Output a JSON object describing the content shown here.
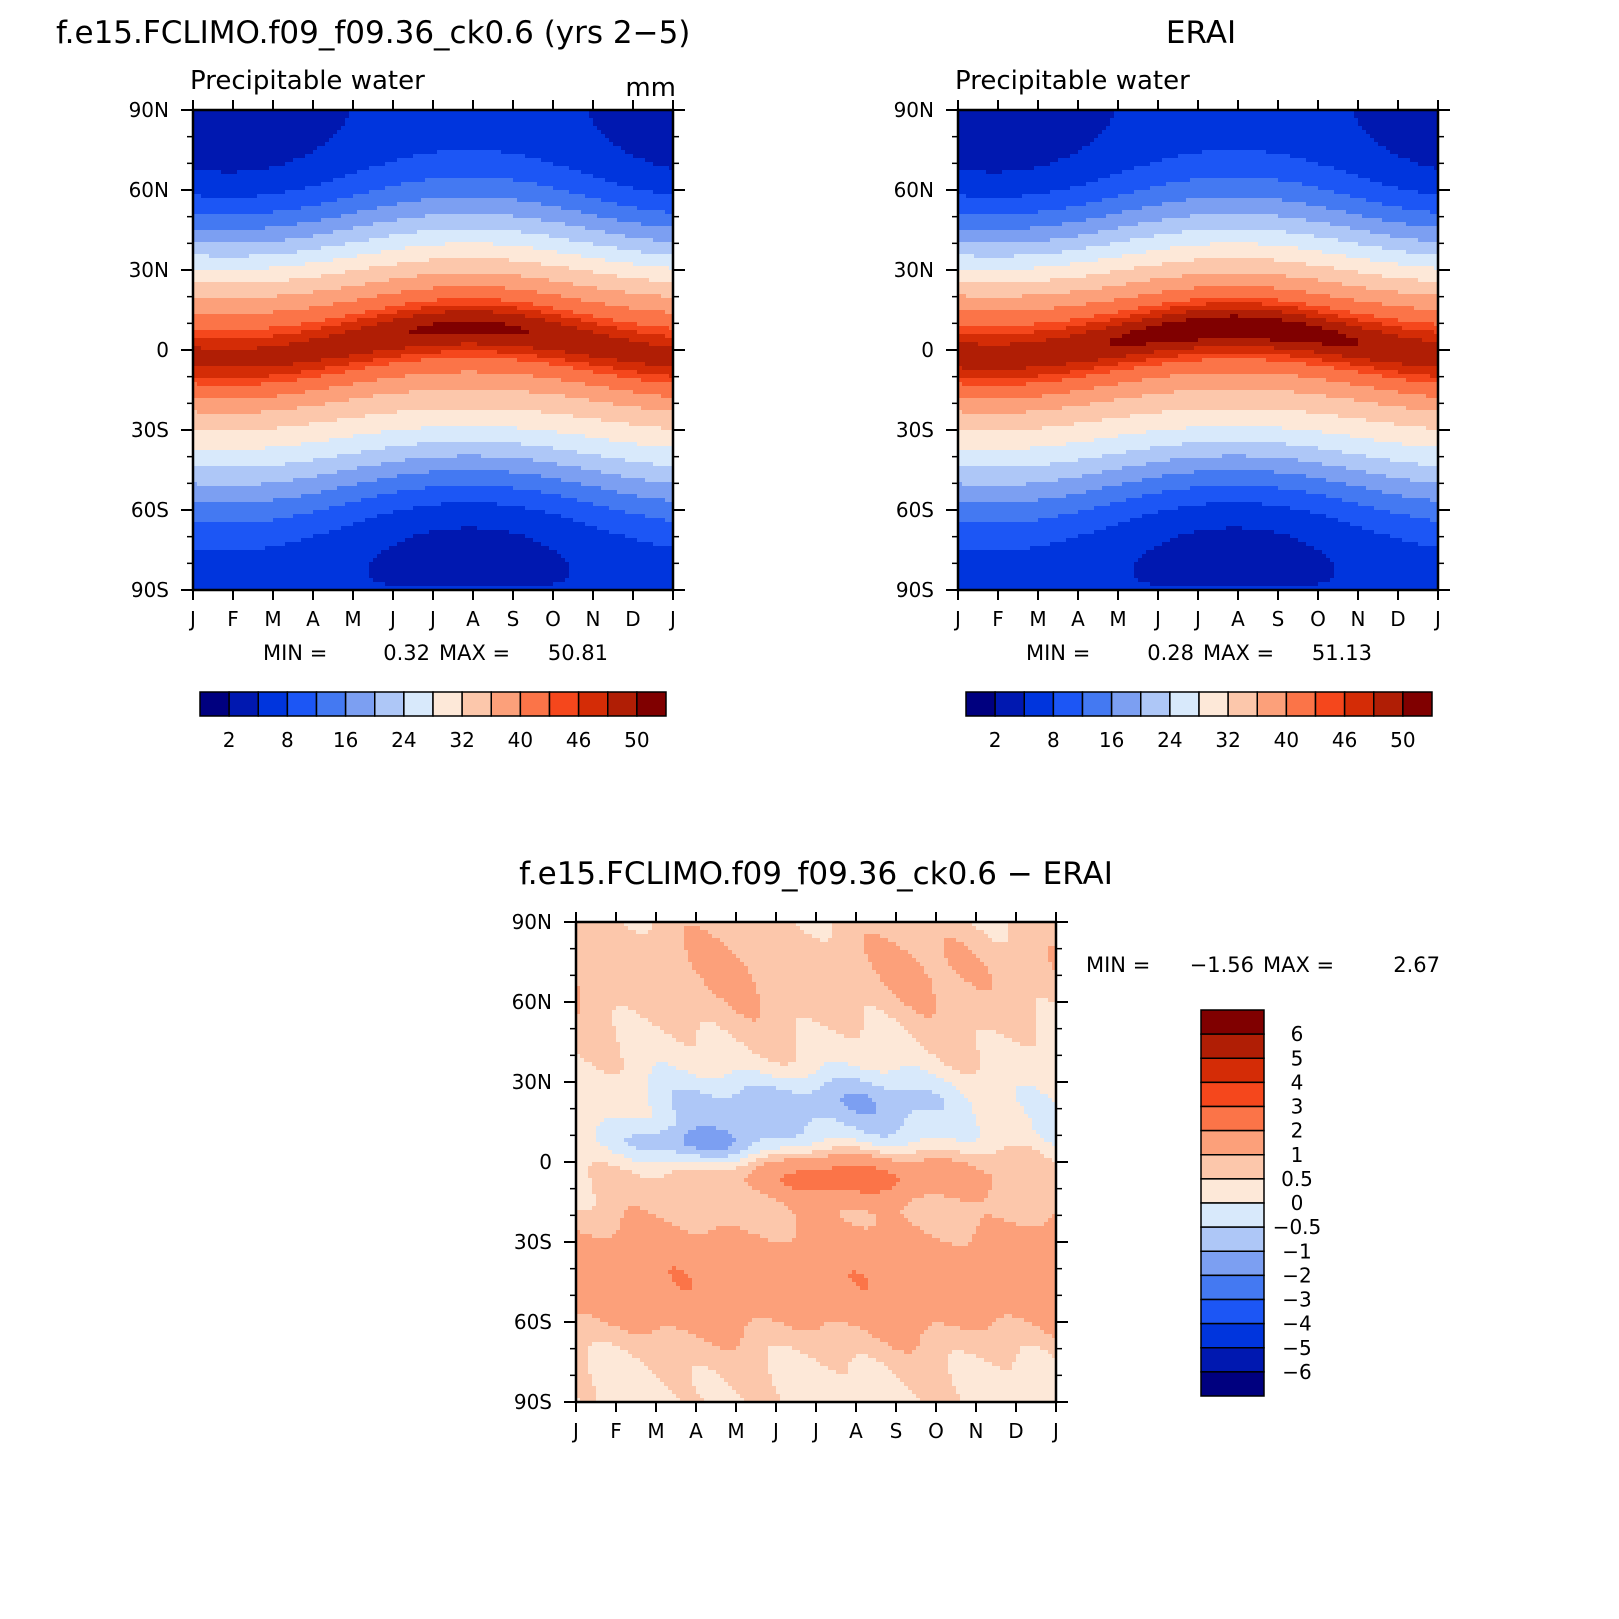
{
  "chart_data": [
    {
      "type": "contour",
      "title": "f.e15.FCLIMO.f09_f09.36_ck0.6 (yrs 2−5)",
      "subtitle": "Precipitable water",
      "units": "mm",
      "x_ticks": [
        "J",
        "F",
        "M",
        "A",
        "M",
        "J",
        "J",
        "A",
        "S",
        "O",
        "N",
        "D",
        "J"
      ],
      "y_ticks": [
        "90N",
        "60N",
        "30N",
        "0",
        "30S",
        "60S",
        "90S"
      ],
      "ylim": [
        -90,
        90
      ],
      "stats": {
        "min_label": "MIN =",
        "min": "0.32",
        "max_label": "MAX =",
        "max": "50.81"
      },
      "levels": [
        2,
        4,
        8,
        12,
        16,
        20,
        24,
        28,
        32,
        36,
        40,
        44,
        46,
        48,
        50
      ],
      "colorbar_labels": [
        "2",
        "8",
        "16",
        "24",
        "32",
        "40",
        "46",
        "50"
      ],
      "colors": [
        "#00007f",
        "#0018b0",
        "#0035dd",
        "#1c56f5",
        "#4479f2",
        "#7c9ff2",
        "#aec7f7",
        "#d8e9fb",
        "#fde8d8",
        "#fcc7ab",
        "#fca07a",
        "#fb7448",
        "#f5471c",
        "#d42c06",
        "#b01e05",
        "#800000"
      ],
      "field": "model"
    },
    {
      "type": "contour",
      "title": "ERAI",
      "subtitle": "Precipitable water",
      "x_ticks": [
        "J",
        "F",
        "M",
        "A",
        "M",
        "J",
        "J",
        "A",
        "S",
        "O",
        "N",
        "D",
        "J"
      ],
      "y_ticks": [
        "90N",
        "60N",
        "30N",
        "0",
        "30S",
        "60S",
        "90S"
      ],
      "ylim": [
        -90,
        90
      ],
      "stats": {
        "min_label": "MIN =",
        "min": "0.28",
        "max_label": "MAX =",
        "max": "51.13"
      },
      "levels": [
        2,
        4,
        8,
        12,
        16,
        20,
        24,
        28,
        32,
        36,
        40,
        44,
        46,
        48,
        50
      ],
      "colorbar_labels": [
        "2",
        "8",
        "16",
        "24",
        "32",
        "40",
        "46",
        "50"
      ],
      "field": "obs"
    },
    {
      "type": "contour",
      "title": "f.e15.FCLIMO.f09_f09.36_ck0.6 − ERAI",
      "x_ticks": [
        "J",
        "F",
        "M",
        "A",
        "M",
        "J",
        "J",
        "A",
        "S",
        "O",
        "N",
        "D",
        "J"
      ],
      "y_ticks": [
        "90N",
        "60N",
        "30N",
        "0",
        "30S",
        "60S",
        "90S"
      ],
      "ylim": [
        -90,
        90
      ],
      "stats": {
        "min_label": "MIN =",
        "min": "−1.56",
        "max_label": "MAX =",
        "max": "2.67"
      },
      "levels": [
        -6,
        -5,
        -4,
        -3,
        -2,
        -1,
        -0.5,
        0,
        0.5,
        1,
        2,
        3,
        4,
        5,
        6
      ],
      "colorbar_labels": [
        "6",
        "5",
        "4",
        "3",
        "2",
        "1",
        "0.5",
        "0",
        "−0.5",
        "−1",
        "−2",
        "−3",
        "−4",
        "−5",
        "−6"
      ],
      "colors": [
        "#00007f",
        "#0018b0",
        "#0035dd",
        "#1c56f5",
        "#4479f2",
        "#7c9ff2",
        "#aec7f7",
        "#d8e9fb",
        "#fde8d8",
        "#fcc7ab",
        "#fca07a",
        "#fb7448",
        "#f5471c",
        "#d42c06",
        "#b01e05",
        "#800000"
      ],
      "field": "diff"
    }
  ]
}
